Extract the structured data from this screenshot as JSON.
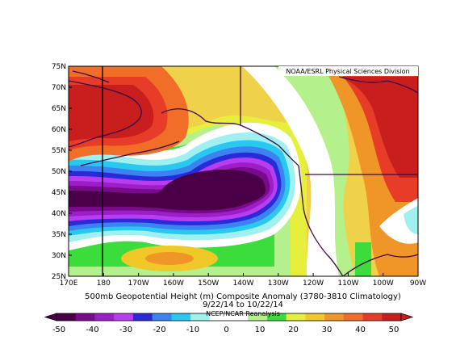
{
  "map": {
    "credit": "NOAA/ESRL Physical Sciences Division",
    "title_line1": "500mb Geopotential Height (m) Composite Anomaly (3780-3810 Climatology)",
    "title_line2": "9/22/14  to 10/22/14",
    "footer": "NCEP/NCAR Reanalysis",
    "lat_labels": [
      "75N",
      "70N",
      "65N",
      "60N",
      "55N",
      "50N",
      "45N",
      "40N",
      "35N",
      "30N",
      "25N"
    ],
    "lon_labels": [
      "170E",
      "180",
      "170W",
      "160W",
      "150W",
      "140W",
      "130W",
      "120W",
      "110W",
      "100W",
      "90W"
    ]
  },
  "colorbar": {
    "ticks": [
      "-50",
      "-40",
      "-30",
      "-20",
      "-10",
      "0",
      "10",
      "20",
      "30",
      "40",
      "50"
    ],
    "colors": [
      "#4a0046",
      "#7a0a8c",
      "#9b1ec8",
      "#b83cf0",
      "#2a2ad8",
      "#3c82f0",
      "#28c8f0",
      "#a0f0f0",
      "#ffffff",
      "#ffffff",
      "#b4f08c",
      "#3cdc3c",
      "#e6f03c",
      "#f0c828",
      "#f09628",
      "#f06e28",
      "#e63c28",
      "#c81e1e"
    ],
    "colors_note": ""
  }
}
